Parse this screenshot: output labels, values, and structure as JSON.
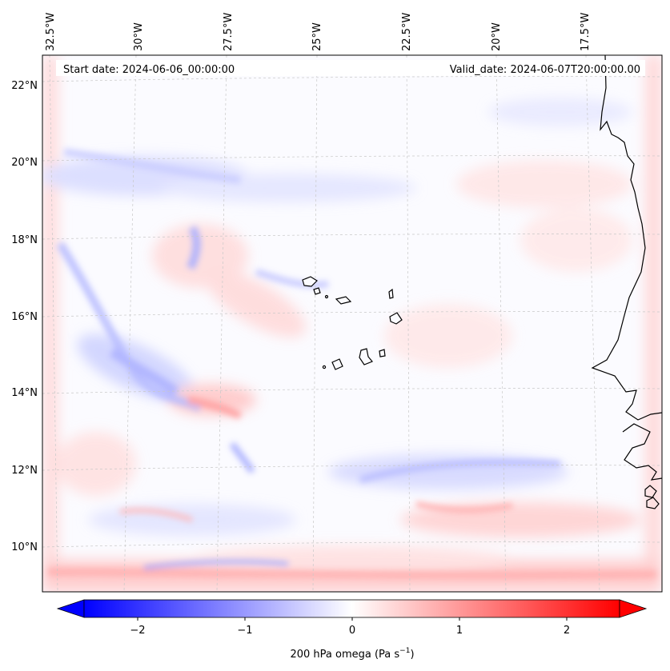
{
  "map": {
    "start_date": "Start date: 2024-06-06_00:00:00",
    "valid_date": "Valid_date: 2024-06-07T20:00:00.00",
    "lon_labels": [
      "32.5°W",
      "30°W",
      "27.5°W",
      "25°W",
      "22.5°W",
      "20°W",
      "17.5°W"
    ],
    "lat_labels": [
      "22°N",
      "20°N",
      "18°N",
      "16°N",
      "14°N",
      "12°N",
      "10°N"
    ],
    "variable": "200 hPa omega",
    "field_description": "filled contours, diverging blue-white-red"
  },
  "colorbar": {
    "label_prefix": "200 hPa omega (Pa s",
    "label_exp": "−1",
    "label_suffix": ")",
    "ticks": [
      "−2",
      "−1",
      "0",
      "1",
      "2"
    ],
    "range": [
      -2.6,
      2.6
    ],
    "extend": "both",
    "colors": {
      "low": "#0000ff",
      "mid": "#ffffff",
      "high": "#ff0000"
    }
  },
  "colors": {
    "coastline": "#000000",
    "gridline": "#c8c8c8",
    "negative": "#6f78ff",
    "positive": "#ff8a8a"
  }
}
